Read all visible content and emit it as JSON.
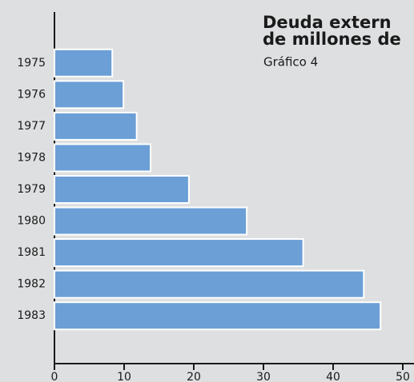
{
  "chart_data": {
    "type": "barh",
    "title": [
      "Deuda extern",
      "de millones de"
    ],
    "subtitle": "Gráfico 4",
    "categories": [
      "1975",
      "1976",
      "1977",
      "1978",
      "1979",
      "1980",
      "1981",
      "1982",
      "1983"
    ],
    "values": [
      8.3,
      9.9,
      11.8,
      13.8,
      19.3,
      27.6,
      35.7,
      44.4,
      46.8
    ],
    "color": "#6b9fd6",
    "xlim": [
      0,
      50
    ],
    "xticks": [
      0,
      10,
      20,
      30,
      40,
      50
    ],
    "grid": false
  }
}
